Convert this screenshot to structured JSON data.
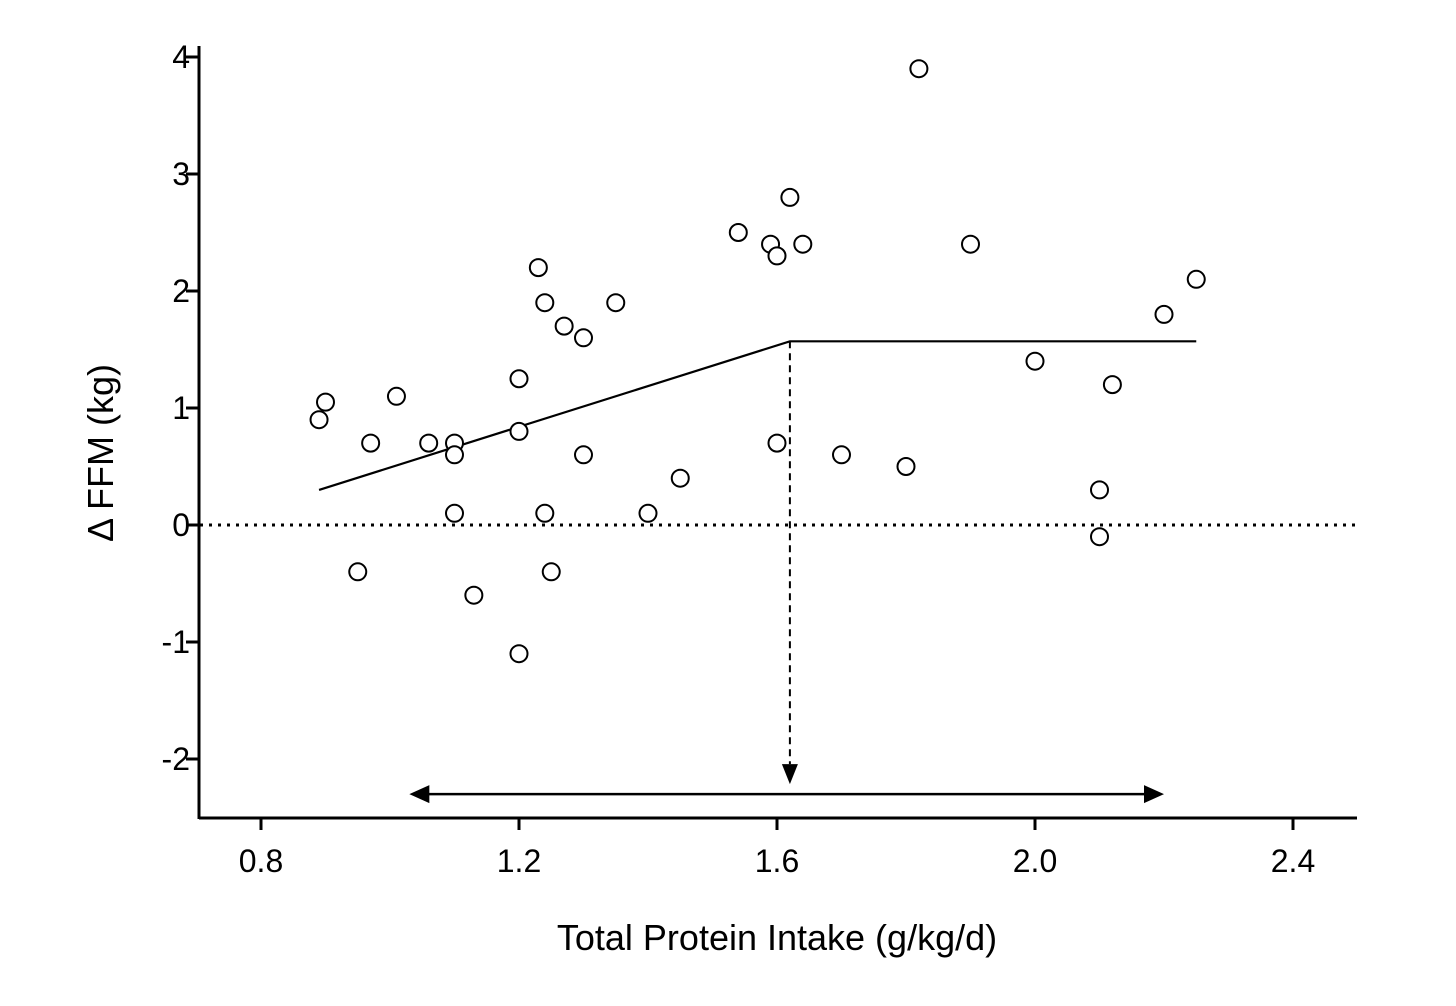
{
  "chart_data": {
    "type": "scatter",
    "title": "",
    "xlabel": "Total Protein Intake (g/kg/d)",
    "ylabel": "Δ FFM (kg)",
    "xlim": [
      0.7,
      2.5
    ],
    "ylim": [
      -2.5,
      4.1
    ],
    "x_ticks": [
      0.8,
      1.2,
      1.6,
      2.0,
      2.4
    ],
    "x_tick_labels": [
      "0.8",
      "1.2",
      "1.6",
      "2.0",
      "2.4"
    ],
    "y_ticks": [
      -2,
      -1,
      0,
      1,
      2,
      3,
      4
    ],
    "y_tick_labels": [
      "-2",
      "-1",
      "0",
      "1",
      "2",
      "3",
      "4"
    ],
    "grid": false,
    "points": [
      {
        "x": 0.89,
        "y": 0.9
      },
      {
        "x": 0.9,
        "y": 1.05
      },
      {
        "x": 0.95,
        "y": -0.4
      },
      {
        "x": 0.97,
        "y": 0.7
      },
      {
        "x": 1.01,
        "y": 1.1
      },
      {
        "x": 1.06,
        "y": 0.7
      },
      {
        "x": 1.1,
        "y": 0.7
      },
      {
        "x": 1.1,
        "y": 0.6
      },
      {
        "x": 1.1,
        "y": 0.1
      },
      {
        "x": 1.13,
        "y": -0.6
      },
      {
        "x": 1.2,
        "y": 1.25
      },
      {
        "x": 1.2,
        "y": 0.8
      },
      {
        "x": 1.2,
        "y": -1.1
      },
      {
        "x": 1.23,
        "y": 2.2
      },
      {
        "x": 1.24,
        "y": 1.9
      },
      {
        "x": 1.24,
        "y": 0.1
      },
      {
        "x": 1.25,
        "y": -0.4
      },
      {
        "x": 1.27,
        "y": 1.7
      },
      {
        "x": 1.3,
        "y": 1.6
      },
      {
        "x": 1.3,
        "y": 0.6
      },
      {
        "x": 1.35,
        "y": 1.9
      },
      {
        "x": 1.4,
        "y": 0.1
      },
      {
        "x": 1.45,
        "y": 0.4
      },
      {
        "x": 1.54,
        "y": 2.5
      },
      {
        "x": 1.59,
        "y": 2.4
      },
      {
        "x": 1.6,
        "y": 2.3
      },
      {
        "x": 1.6,
        "y": 0.7
      },
      {
        "x": 1.62,
        "y": 2.8
      },
      {
        "x": 1.64,
        "y": 2.4
      },
      {
        "x": 1.7,
        "y": 0.6
      },
      {
        "x": 1.8,
        "y": 0.5
      },
      {
        "x": 1.82,
        "y": 3.9
      },
      {
        "x": 1.9,
        "y": 2.4
      },
      {
        "x": 2.0,
        "y": 1.4
      },
      {
        "x": 2.1,
        "y": 0.3
      },
      {
        "x": 2.1,
        "y": -0.1
      },
      {
        "x": 2.12,
        "y": 1.2
      },
      {
        "x": 2.2,
        "y": 1.8
      },
      {
        "x": 2.25,
        "y": 2.1
      }
    ],
    "fit_line": [
      {
        "x": 0.89,
        "y": 0.3
      },
      {
        "x": 1.62,
        "y": 1.57
      },
      {
        "x": 2.25,
        "y": 1.57
      }
    ],
    "reference_line": {
      "y": 0,
      "style": "dotted"
    },
    "breakpoint": {
      "x": 1.62,
      "y": 1.57,
      "style": "dashed"
    },
    "confidence_interval": {
      "low": 1.03,
      "high": 2.2,
      "y": -2.3
    }
  }
}
